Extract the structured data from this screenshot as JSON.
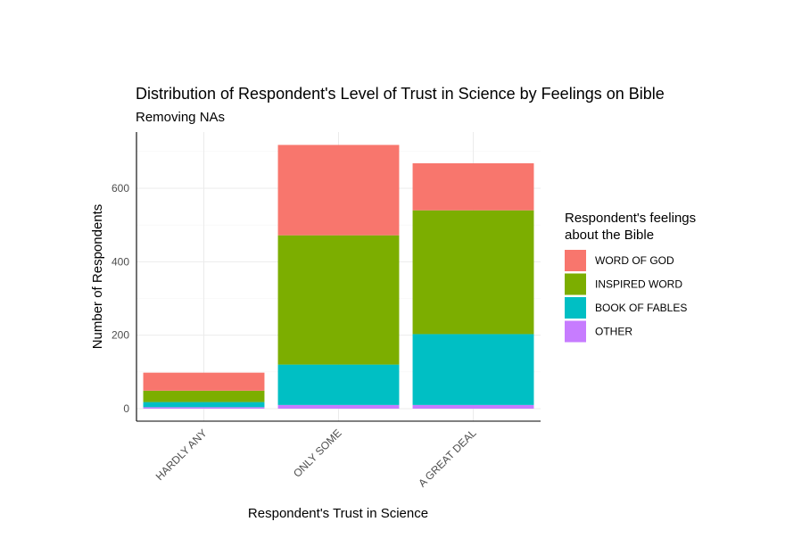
{
  "chart_data": {
    "type": "bar",
    "stacked": true,
    "title": "Distribution of Respondent's Level of Trust in Science by Feelings on Bible",
    "subtitle": "Removing NAs",
    "xlabel": "Respondent's Trust in Science",
    "ylabel": "Number of Respondents",
    "categories": [
      "HARDLY ANY",
      "ONLY SOME",
      "A GREAT DEAL"
    ],
    "ylim": [
      0,
      750
    ],
    "yticks": [
      0,
      200,
      400,
      600
    ],
    "grid": true,
    "legend": {
      "title_lines": [
        "Respondent's feelings",
        "about the Bible"
      ],
      "position": "right"
    },
    "series": [
      {
        "name": "OTHER",
        "color": "#C77CFF",
        "values": [
          4,
          10,
          10
        ]
      },
      {
        "name": "BOOK OF FABLES",
        "color": "#00BFC4",
        "values": [
          14,
          110,
          193
        ]
      },
      {
        "name": "INSPIRED WORD",
        "color": "#7CAE00",
        "values": [
          31,
          352,
          337
        ]
      },
      {
        "name": "WORD OF GOD",
        "color": "#F8766D",
        "values": [
          49,
          246,
          128
        ]
      }
    ],
    "legend_order": [
      "WORD OF GOD",
      "INSPIRED WORD",
      "BOOK OF FABLES",
      "OTHER"
    ]
  }
}
